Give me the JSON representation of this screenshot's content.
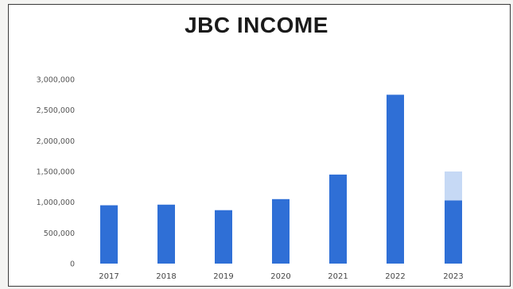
{
  "chart_data": {
    "type": "bar",
    "title": "JBC INCOME",
    "categories": [
      "2017",
      "2018",
      "2019",
      "2020",
      "2021",
      "2022",
      "2023"
    ],
    "series": [
      {
        "values": [
          950000,
          960000,
          870000,
          1050000,
          1450000,
          2750000,
          1030000
        ],
        "color": "#2f6fd6"
      },
      {
        "values": [
          0,
          0,
          0,
          0,
          0,
          0,
          470000
        ],
        "color": "#c6d9f5"
      }
    ],
    "stacked": true,
    "ylim": [
      0,
      3000000
    ],
    "yticks": [
      0,
      500000,
      1000000,
      1500000,
      2000000,
      2500000,
      3000000
    ],
    "ytick_labels": [
      "0",
      "500,000",
      "1,000,000",
      "1,500,000",
      "2,000,000",
      "2,500,000",
      "3,000,000"
    ],
    "xlabel": "",
    "ylabel": "",
    "grid": false,
    "legend": "none"
  }
}
